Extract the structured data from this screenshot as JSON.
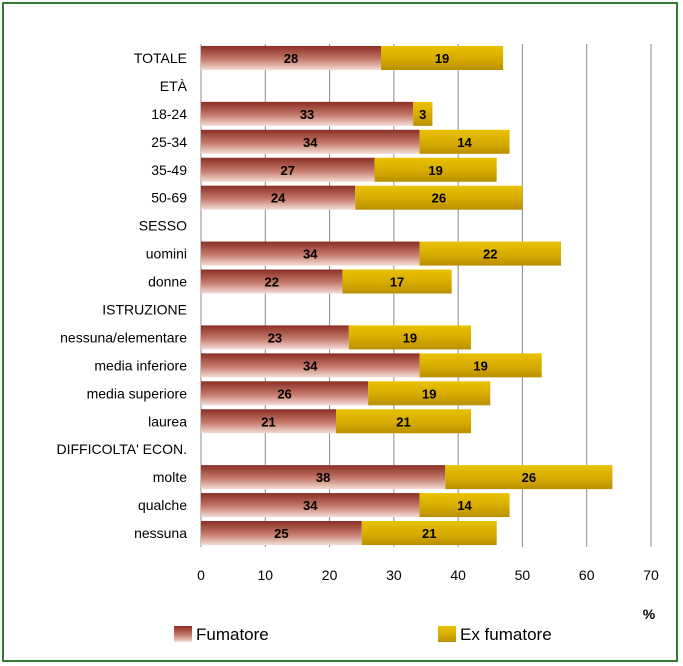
{
  "chart_data": {
    "type": "bar",
    "orientation": "horizontal",
    "stacked": true,
    "categories": [
      "TOTALE",
      "ETÀ",
      "18-24",
      "25-34",
      "35-49",
      "50-69",
      "SESSO",
      "uomini",
      "donne",
      "ISTRUZIONE",
      "nessuna/elementare",
      "media inferiore",
      "media superiore",
      "laurea",
      "DIFFICOLTA' ECON.",
      "molte",
      "qualche",
      "nessuna"
    ],
    "series": [
      {
        "name": "Fumatore",
        "color": "#a0463c",
        "values": [
          28,
          null,
          33,
          34,
          27,
          24,
          null,
          34,
          22,
          null,
          23,
          34,
          26,
          21,
          null,
          38,
          34,
          25
        ],
        "labels": [
          "28",
          "",
          "33",
          "34",
          "27",
          "24",
          "",
          "34",
          "22",
          "",
          "23",
          "34",
          "26",
          "21",
          "",
          "38",
          "34",
          "25"
        ]
      },
      {
        "name": "Ex fumatore",
        "color": "#d4ac00",
        "values": [
          19,
          null,
          3,
          14,
          19,
          26,
          null,
          22,
          17,
          null,
          19,
          19,
          19,
          21,
          null,
          26,
          14,
          21
        ],
        "labels": [
          "19",
          "",
          "3",
          "14",
          "19",
          "26",
          "",
          "22",
          "17",
          "",
          "19",
          "19",
          "19",
          "21",
          "",
          "26",
          "14",
          "21"
        ]
      }
    ],
    "xlim": [
      0,
      70
    ],
    "xticks": [
      "0",
      "10",
      "20",
      "30",
      "40",
      "50",
      "60",
      "70"
    ],
    "xlabel": "%",
    "grid": true,
    "legend_position": "bottom"
  }
}
